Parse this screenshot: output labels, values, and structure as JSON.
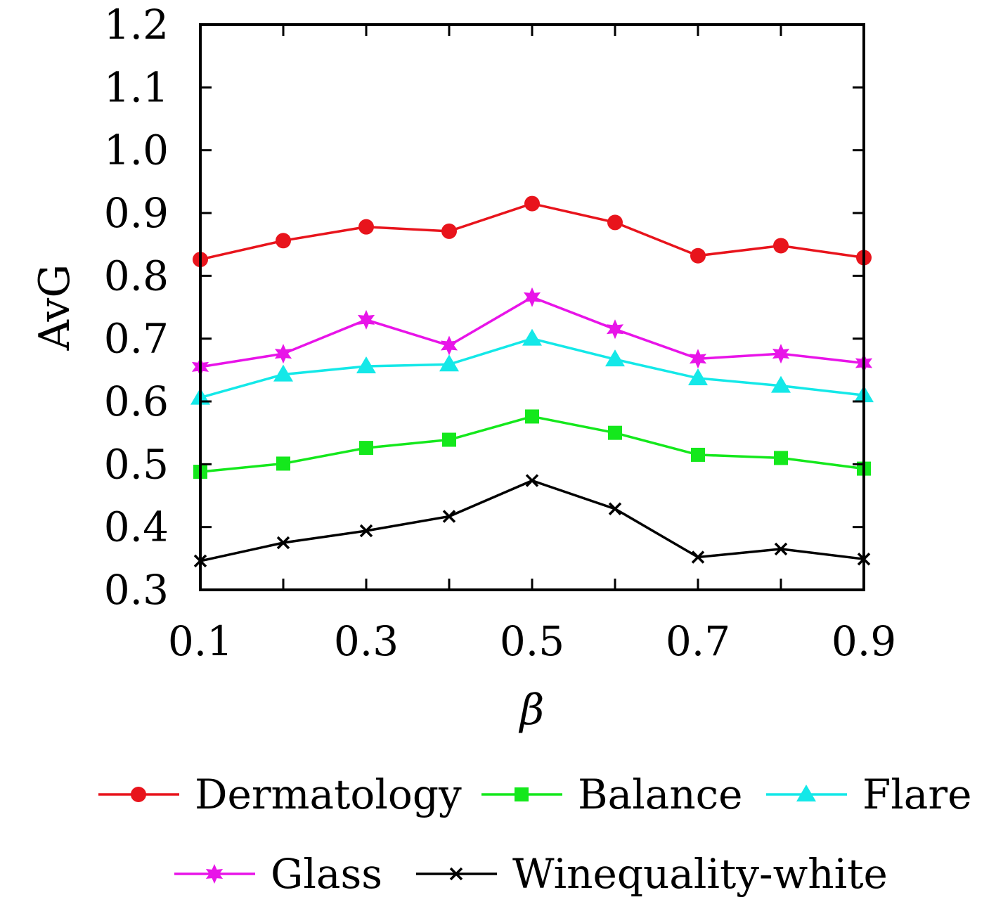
{
  "chart_data": {
    "type": "line",
    "title": "",
    "xlabel": "β",
    "ylabel": "AvG",
    "xlim": [
      0.1,
      0.9
    ],
    "ylim": [
      0.3,
      1.2
    ],
    "x": [
      0.1,
      0.2,
      0.3,
      0.4,
      0.5,
      0.6,
      0.7,
      0.8,
      0.9
    ],
    "xticks": [
      "0.1",
      "0.3",
      "0.5",
      "0.7",
      "0.9"
    ],
    "xtick_values": [
      0.1,
      0.3,
      0.5,
      0.7,
      0.9
    ],
    "yticks": [
      "0.3",
      "0.4",
      "0.5",
      "0.6",
      "0.7",
      "0.8",
      "0.9",
      "1.0",
      "1.1",
      "1.2"
    ],
    "ytick_values": [
      0.3,
      0.4,
      0.5,
      0.6,
      0.7,
      0.8,
      0.9,
      1.0,
      1.1,
      1.2
    ],
    "grid": false,
    "legend_position": "bottom",
    "series": [
      {
        "name": "Dermatology",
        "color": "#e8141c",
        "marker": "circle",
        "values": [
          0.826,
          0.856,
          0.878,
          0.871,
          0.915,
          0.885,
          0.832,
          0.848,
          0.829
        ]
      },
      {
        "name": "Balance",
        "color": "#14e81c",
        "marker": "square",
        "values": [
          0.488,
          0.501,
          0.526,
          0.539,
          0.576,
          0.55,
          0.515,
          0.51,
          0.493
        ]
      },
      {
        "name": "Flare",
        "color": "#14e8e8",
        "marker": "triangle",
        "values": [
          0.606,
          0.643,
          0.656,
          0.659,
          0.7,
          0.667,
          0.637,
          0.625,
          0.61
        ]
      },
      {
        "name": "Glass",
        "color": "#e814e8",
        "marker": "star",
        "values": [
          0.655,
          0.676,
          0.73,
          0.689,
          0.766,
          0.715,
          0.668,
          0.676,
          0.661
        ]
      },
      {
        "name": "Winequality-white",
        "color": "#000000",
        "marker": "x",
        "values": [
          0.346,
          0.375,
          0.394,
          0.417,
          0.474,
          0.429,
          0.352,
          0.365,
          0.349
        ]
      }
    ]
  }
}
